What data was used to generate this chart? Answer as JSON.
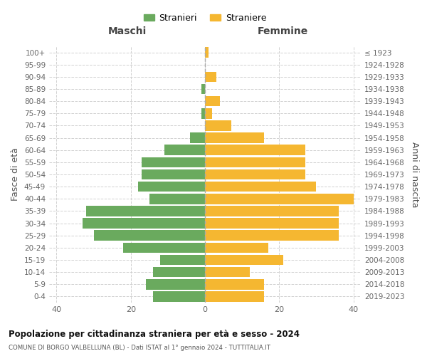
{
  "age_groups": [
    "0-4",
    "5-9",
    "10-14",
    "15-19",
    "20-24",
    "25-29",
    "30-34",
    "35-39",
    "40-44",
    "45-49",
    "50-54",
    "55-59",
    "60-64",
    "65-69",
    "70-74",
    "75-79",
    "80-84",
    "85-89",
    "90-94",
    "95-99",
    "100+"
  ],
  "birth_years": [
    "2019-2023",
    "2014-2018",
    "2009-2013",
    "2004-2008",
    "1999-2003",
    "1994-1998",
    "1989-1993",
    "1984-1988",
    "1979-1983",
    "1974-1978",
    "1969-1973",
    "1964-1968",
    "1959-1963",
    "1954-1958",
    "1949-1953",
    "1944-1948",
    "1939-1943",
    "1934-1938",
    "1929-1933",
    "1924-1928",
    "≤ 1923"
  ],
  "maschi": [
    14,
    16,
    14,
    12,
    22,
    30,
    33,
    32,
    15,
    18,
    17,
    17,
    11,
    4,
    0,
    1,
    0,
    1,
    0,
    0,
    0
  ],
  "femmine": [
    16,
    16,
    12,
    21,
    17,
    36,
    36,
    36,
    40,
    30,
    27,
    27,
    27,
    16,
    7,
    2,
    4,
    0,
    3,
    0,
    1
  ],
  "maschi_color": "#6aaa5e",
  "femmine_color": "#f5b731",
  "title": "Popolazione per cittadinanza straniera per età e sesso - 2024",
  "subtitle": "COMUNE DI BORGO VALBELLUNA (BL) - Dati ISTAT al 1° gennaio 2024 - TUTTITALIA.IT",
  "ylabel_left": "Fasce di età",
  "ylabel_right": "Anni di nascita",
  "xlabel_maschi": "Maschi",
  "xlabel_femmine": "Femmine",
  "xlim": 42,
  "legend_stranieri": "Stranieri",
  "legend_straniere": "Straniere",
  "bg_color": "#ffffff",
  "grid_color": "#cccccc",
  "bar_height": 0.85
}
